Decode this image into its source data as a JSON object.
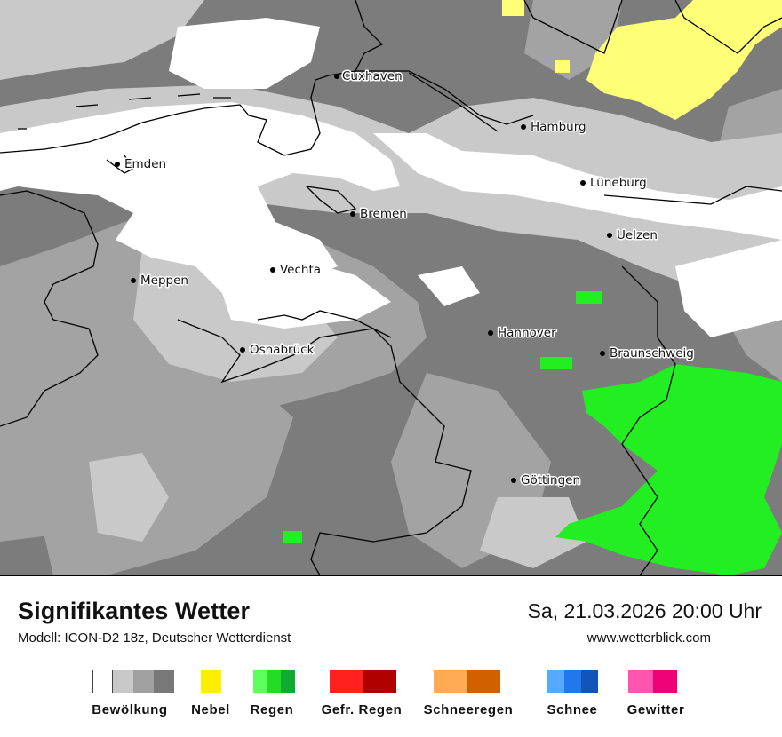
{
  "header": {
    "title": "Signifikantes Wetter",
    "model": "Modell: ICON-D2 18z, Deutscher Wetterdienst",
    "datetime": "Sa, 21.03.2026 20:00 Uhr",
    "website": "www.wetterblick.com"
  },
  "cities": [
    {
      "name": "Cuxhaven"
    },
    {
      "name": "Hamburg"
    },
    {
      "name": "Emden"
    },
    {
      "name": "Lüneburg"
    },
    {
      "name": "Bremen"
    },
    {
      "name": "Uelzen"
    },
    {
      "name": "Vechta"
    },
    {
      "name": "Meppen"
    },
    {
      "name": "Hannover"
    },
    {
      "name": "Osnabrück"
    },
    {
      "name": "Braunschweig"
    },
    {
      "name": "Göttingen"
    }
  ],
  "legend": [
    {
      "label": "Bewölkung",
      "colors": [
        "#ffffff",
        "#c8c8c8",
        "#a0a0a0",
        "#787878"
      ]
    },
    {
      "label": "Nebel",
      "colors": [
        "#ffee00"
      ]
    },
    {
      "label": "Regen",
      "colors": [
        "#5cff5c",
        "#22dd22",
        "#11aa33"
      ]
    },
    {
      "label": "Gefr. Regen",
      "colors": [
        "#ff2020",
        "#b00000"
      ]
    },
    {
      "label": "Schneeregen",
      "colors": [
        "#ffaa55",
        "#d06000"
      ]
    },
    {
      "label": "Schnee",
      "colors": [
        "#55aaff",
        "#2277ee",
        "#1155bb"
      ]
    },
    {
      "label": "Gewitter",
      "colors": [
        "#ff55b0",
        "#ee0077"
      ]
    }
  ],
  "colors": {
    "cloud_dark": "#787878",
    "cloud_medium": "#a0a0a0",
    "cloud_light": "#c8c8c8",
    "clear": "#ffffff",
    "fog": "#ffff77",
    "rain": "#22ee22"
  }
}
